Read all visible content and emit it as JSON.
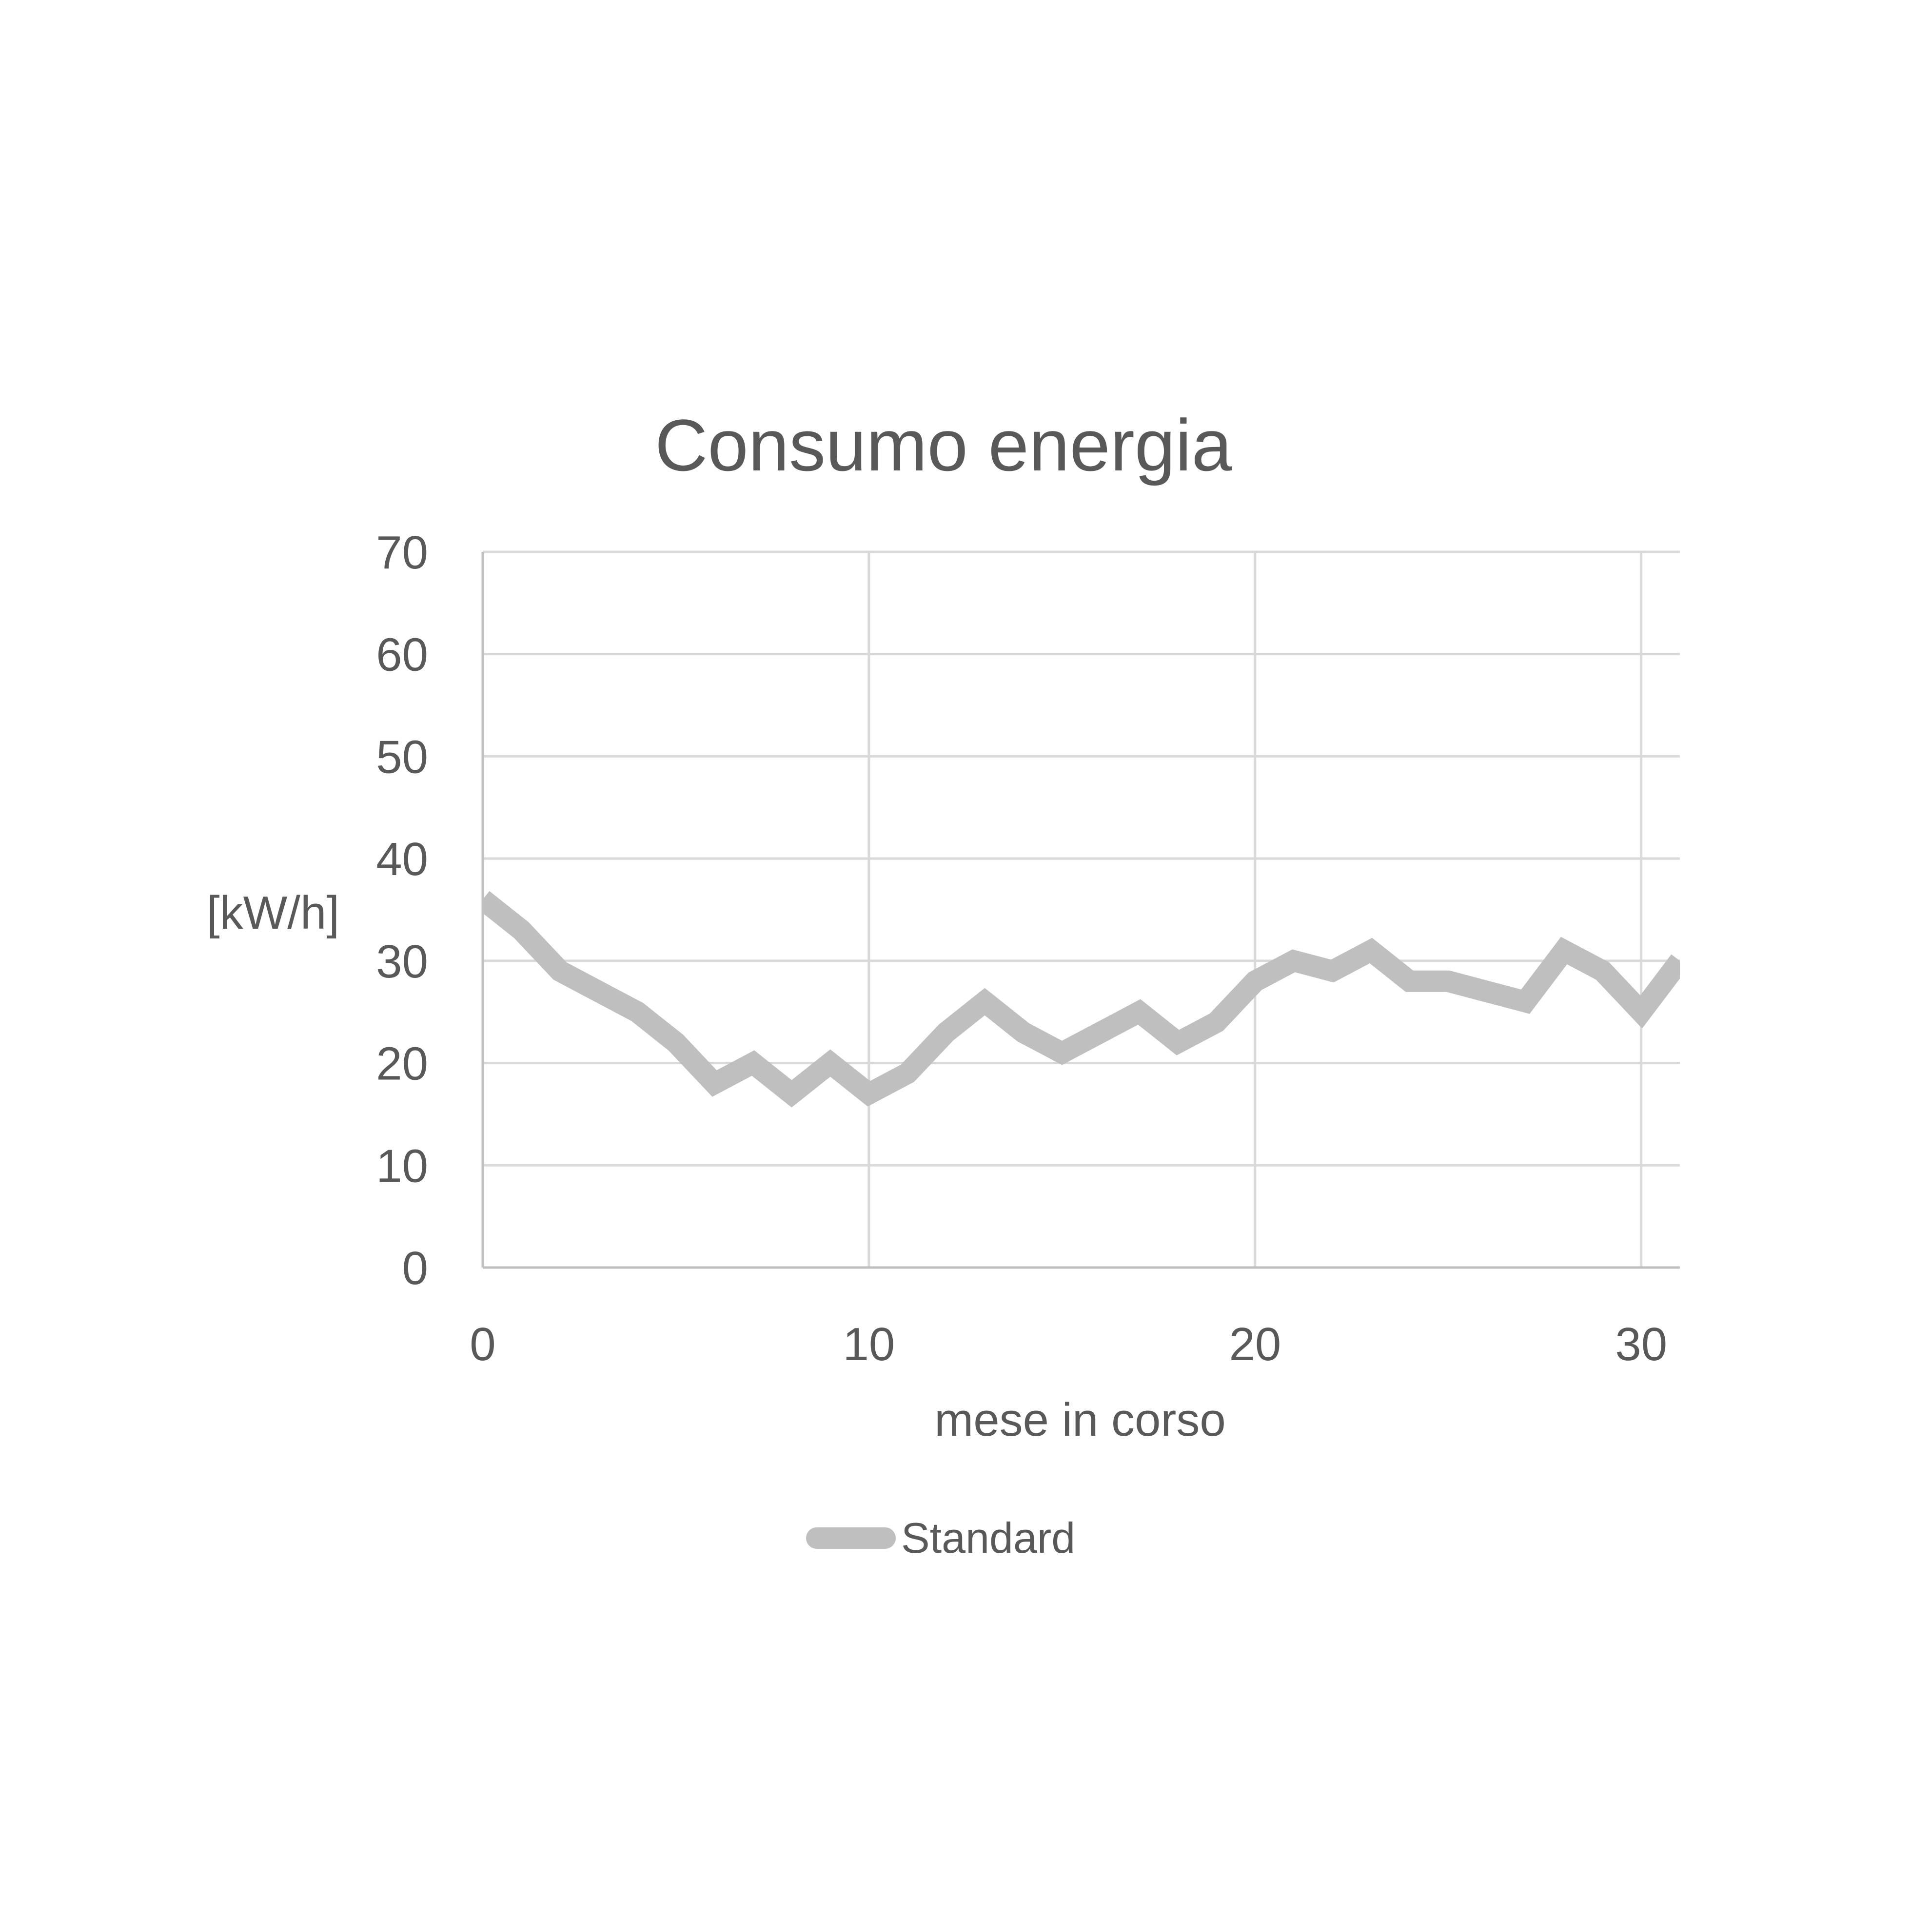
{
  "chart_data": {
    "type": "line",
    "title": "Consumo energia",
    "xlabel": "mese in corso",
    "ylabel": "[kW/h]",
    "xlim": [
      0,
      31
    ],
    "ylim": [
      0,
      70
    ],
    "x_ticks": [
      0,
      10,
      20,
      30
    ],
    "y_ticks": [
      0,
      10,
      20,
      30,
      40,
      50,
      60,
      70
    ],
    "grid": true,
    "legend_position": "bottom",
    "x": [
      0,
      1,
      2,
      3,
      4,
      5,
      6,
      7,
      8,
      9,
      10,
      11,
      12,
      13,
      14,
      15,
      16,
      17,
      18,
      19,
      20,
      21,
      22,
      23,
      24,
      25,
      26,
      27,
      28,
      29,
      30,
      31
    ],
    "series": [
      {
        "name": "Standard",
        "color": "#bfbfbf",
        "values": [
          36,
          33,
          29,
          27,
          25,
          22,
          18,
          20,
          17,
          20,
          17,
          19,
          23,
          26,
          23,
          21,
          23,
          25,
          22,
          24,
          28,
          30,
          29,
          31,
          28,
          28,
          27,
          26,
          31,
          29,
          25,
          30
        ]
      }
    ],
    "colors": {
      "gridline": "#d9d9d9",
      "axis": "#bfbfbf",
      "text": "#595959"
    }
  }
}
